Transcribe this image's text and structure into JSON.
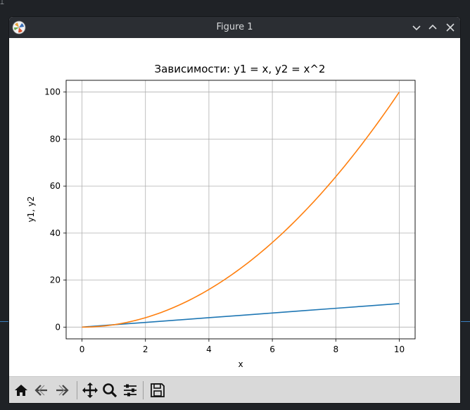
{
  "window": {
    "title": "Figure 1"
  },
  "toolbar": {
    "buttons": [
      "home-icon",
      "back-icon",
      "forward-icon",
      "pan-icon",
      "zoom-icon",
      "configure-subplots-icon",
      "save-icon"
    ]
  },
  "colors": {
    "series1": "#1f77b4",
    "series2": "#ff7f0e",
    "grid": "#b0b0b0",
    "titlebar": "#2b2e33",
    "toolbar": "#d9d9d9"
  },
  "chart_data": {
    "type": "line",
    "title": "Зависимости: y1 = x, y2 = x^2",
    "xlabel": "x",
    "ylabel": "y1, y2",
    "xlim": [
      -0.5,
      10.5
    ],
    "ylim": [
      -5,
      105
    ],
    "xticks": [
      0,
      2,
      4,
      6,
      8,
      10
    ],
    "xtick_labels": [
      "0",
      "2",
      "4",
      "6",
      "8",
      "10"
    ],
    "yticks": [
      0,
      20,
      40,
      60,
      80,
      100
    ],
    "ytick_labels": [
      "0",
      "20",
      "40",
      "60",
      "80",
      "100"
    ],
    "grid": true,
    "series": [
      {
        "x": [
          0,
          1,
          2,
          3,
          4,
          5,
          6,
          7,
          8,
          9,
          10
        ],
        "values": [
          0,
          1,
          2,
          3,
          4,
          5,
          6,
          7,
          8,
          9,
          10
        ]
      },
      {
        "x": [
          0,
          1,
          2,
          3,
          4,
          5,
          6,
          7,
          8,
          9,
          10
        ],
        "values": [
          0,
          1,
          4,
          9,
          16,
          25,
          36,
          49,
          64,
          81,
          100
        ]
      }
    ]
  }
}
